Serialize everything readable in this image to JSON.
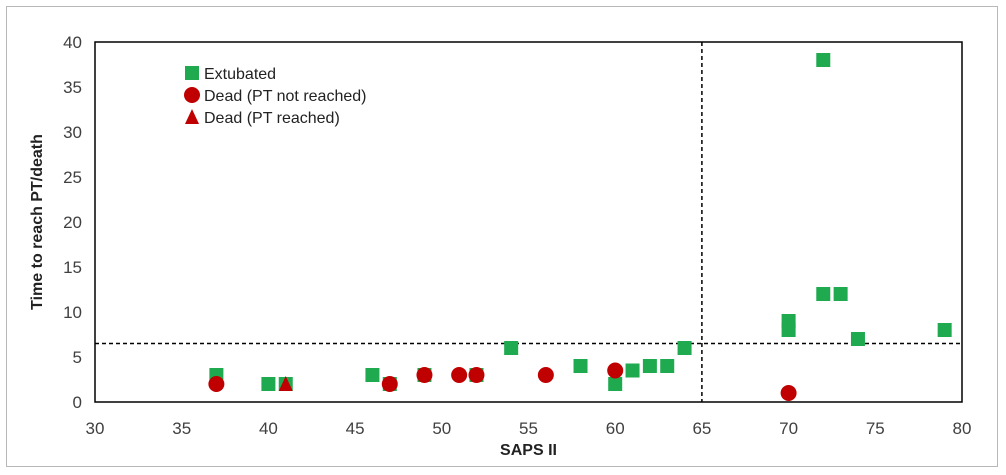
{
  "chart_data": {
    "type": "scatter",
    "title": "",
    "xlabel": "SAPS II",
    "ylabel": "Time to reach PT/death",
    "xlim": [
      30,
      80
    ],
    "ylim": [
      0,
      40
    ],
    "xticks": [
      30,
      35,
      40,
      45,
      50,
      55,
      60,
      65,
      70,
      75,
      80
    ],
    "yticks": [
      0,
      5,
      10,
      15,
      20,
      25,
      30,
      35,
      40
    ],
    "grid": false,
    "legend_position": "top-left",
    "reference_lines": [
      {
        "orientation": "vertical",
        "value": 65,
        "style": "dashed"
      },
      {
        "orientation": "horizontal",
        "value": 6.5,
        "style": "dashed"
      }
    ],
    "series": [
      {
        "name": "Extubated",
        "marker": "square",
        "color": "#1faa4f",
        "points": [
          [
            37,
            3
          ],
          [
            40,
            2
          ],
          [
            41,
            2
          ],
          [
            46,
            3
          ],
          [
            47,
            2
          ],
          [
            49,
            3
          ],
          [
            52,
            3
          ],
          [
            54,
            6
          ],
          [
            58,
            4
          ],
          [
            60,
            2
          ],
          [
            61,
            3.5
          ],
          [
            62,
            4
          ],
          [
            63,
            4
          ],
          [
            64,
            6
          ],
          [
            70,
            8
          ],
          [
            70,
            9
          ],
          [
            72,
            12
          ],
          [
            72,
            38
          ],
          [
            73,
            12
          ],
          [
            74,
            7
          ],
          [
            79,
            8
          ]
        ]
      },
      {
        "name": "Dead (PT not reached)",
        "marker": "circle",
        "color": "#c00000",
        "points": [
          [
            37,
            2
          ],
          [
            47,
            2
          ],
          [
            49,
            3
          ],
          [
            51,
            3
          ],
          [
            52,
            3
          ],
          [
            56,
            3
          ],
          [
            60,
            3.5
          ],
          [
            70,
            1
          ]
        ]
      },
      {
        "name": "Dead (PT reached)",
        "marker": "triangle",
        "color": "#c00000",
        "points": [
          [
            41,
            2
          ]
        ]
      }
    ]
  }
}
